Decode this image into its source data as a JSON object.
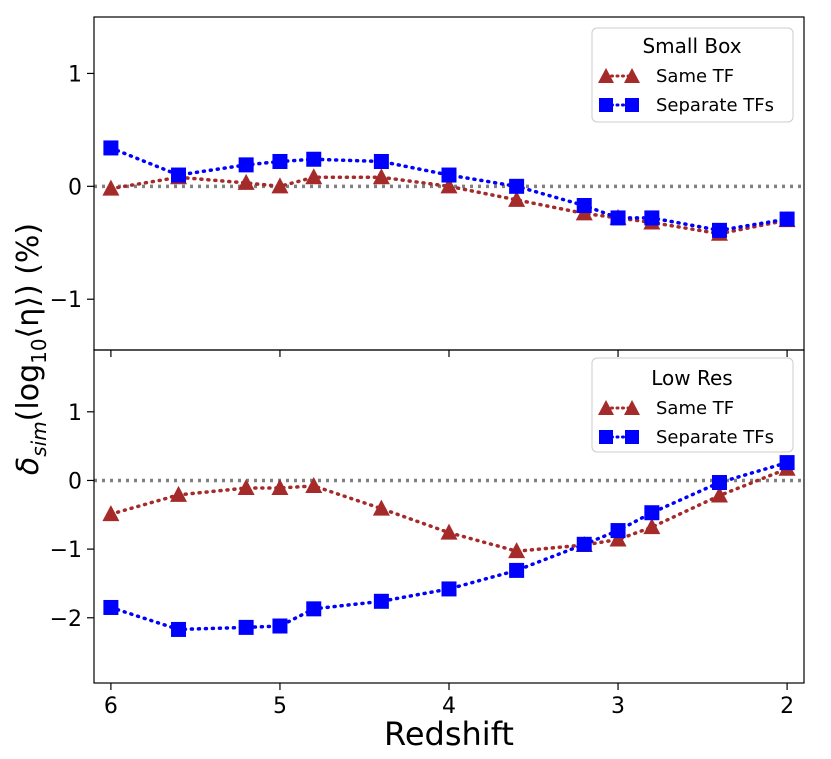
{
  "chart_data": [
    {
      "type": "line",
      "panel": "top",
      "legend_title": "Small Box",
      "legend_position": "upper right",
      "ylim": [
        -1.45,
        1.5
      ],
      "yticks": [
        1,
        0,
        -1
      ],
      "ytick_labels": [
        "1",
        "0",
        "−1"
      ],
      "reference_line": 0,
      "x": [
        6.0,
        5.6,
        5.2,
        5.0,
        4.8,
        4.4,
        4.0,
        3.6,
        3.2,
        3.0,
        2.8,
        2.4,
        2.0
      ],
      "series": [
        {
          "name": "Same TF",
          "marker": "triangle",
          "color": "#a52a2a",
          "values": [
            -0.02,
            0.08,
            0.03,
            0.0,
            0.08,
            0.08,
            0.0,
            -0.12,
            -0.24,
            -0.28,
            -0.32,
            -0.42,
            -0.3
          ]
        },
        {
          "name": "Separate TFs",
          "marker": "square",
          "color": "#0000ff",
          "values": [
            0.34,
            0.1,
            0.19,
            0.22,
            0.24,
            0.22,
            0.1,
            0.0,
            -0.17,
            -0.28,
            -0.28,
            -0.39,
            -0.29
          ]
        }
      ]
    },
    {
      "type": "line",
      "panel": "bottom",
      "legend_title": "Low Res",
      "legend_position": "upper right",
      "ylim": [
        -2.95,
        1.9
      ],
      "yticks": [
        1,
        0,
        -1,
        -2
      ],
      "ytick_labels": [
        "1",
        "0",
        "−1",
        "−2"
      ],
      "reference_line": 0,
      "x": [
        6.0,
        5.6,
        5.2,
        5.0,
        4.8,
        4.4,
        4.0,
        3.6,
        3.2,
        3.0,
        2.8,
        2.4,
        2.0
      ],
      "series": [
        {
          "name": "Same TF",
          "marker": "triangle",
          "color": "#a52a2a",
          "values": [
            -0.49,
            -0.21,
            -0.11,
            -0.11,
            -0.08,
            -0.41,
            -0.76,
            -1.03,
            -0.94,
            -0.86,
            -0.68,
            -0.22,
            0.17
          ]
        },
        {
          "name": "Separate TFs",
          "marker": "square",
          "color": "#0000ff",
          "values": [
            -1.85,
            -2.17,
            -2.14,
            -2.12,
            -1.87,
            -1.76,
            -1.58,
            -1.31,
            -0.93,
            -0.73,
            -0.47,
            -0.03,
            0.26
          ]
        }
      ]
    }
  ],
  "shared": {
    "xlabel": "Redshift",
    "ylabel_parts": {
      "delta": "δ",
      "sub": "sim",
      "open": "(log",
      "log_sub": "10",
      "eta": "⟨η⟩",
      "close": ") (%)"
    },
    "xlim": [
      6.1,
      1.9
    ],
    "xticks": [
      6,
      5,
      4,
      3,
      2
    ],
    "xtick_labels": [
      "6",
      "5",
      "4",
      "3",
      "2"
    ],
    "colors": {
      "same_tf": "#a52a2a",
      "separate_tfs": "#0000ff",
      "reference": "#808080"
    }
  }
}
